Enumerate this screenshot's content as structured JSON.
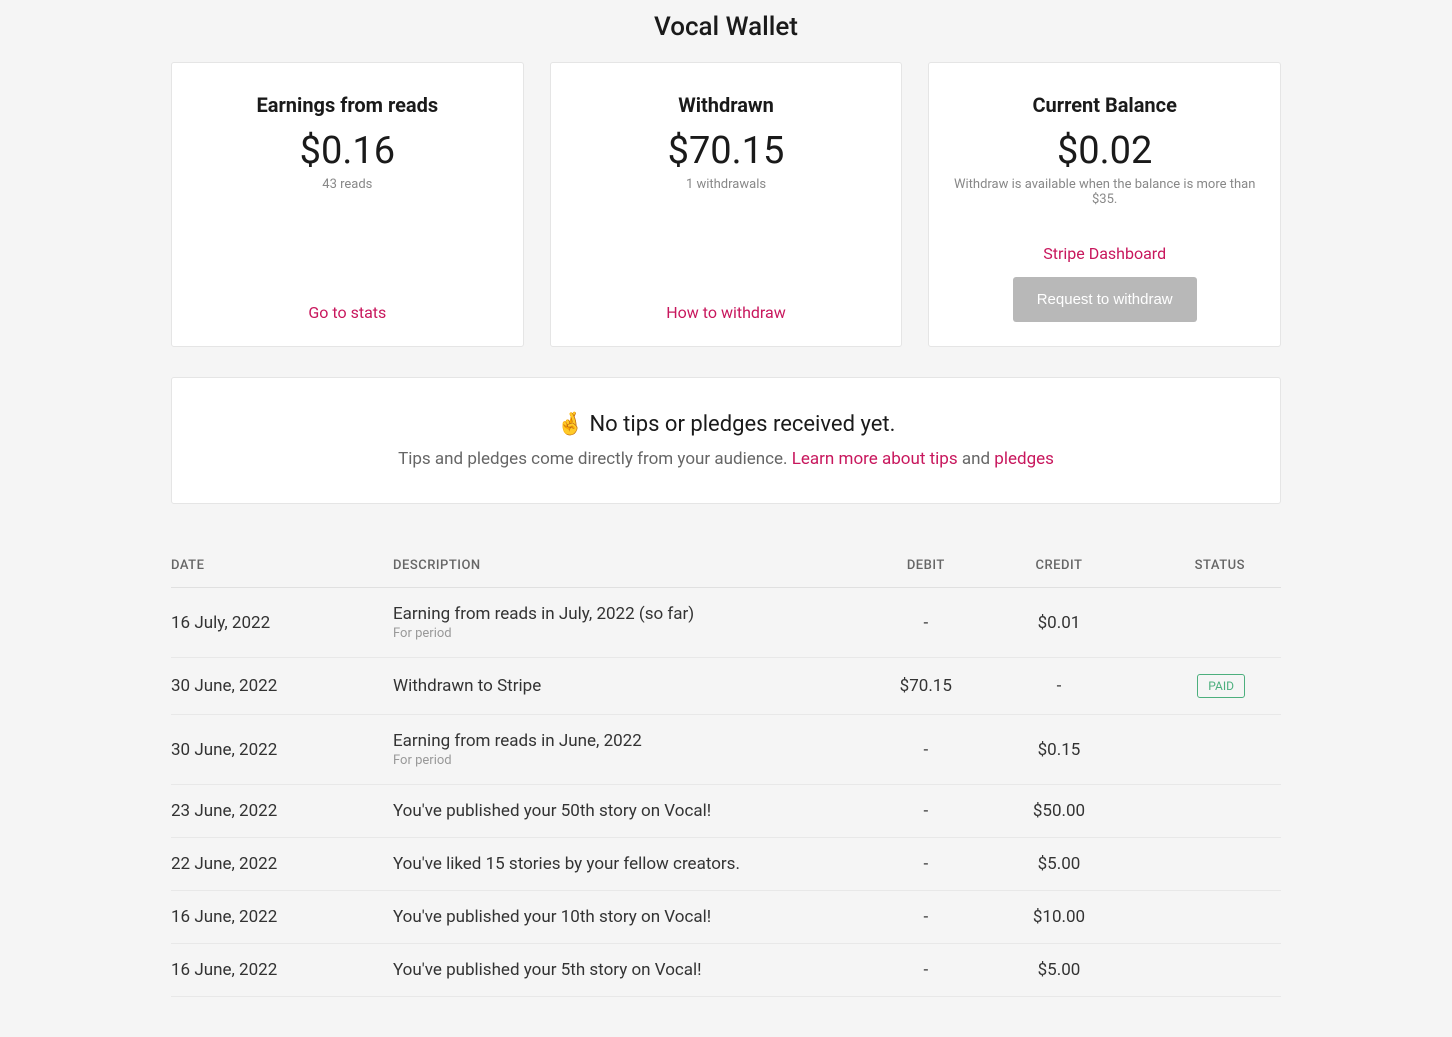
{
  "page_title": "Vocal Wallet",
  "cards": {
    "earnings": {
      "title": "Earnings from reads",
      "value": "$0.16",
      "sub": "43 reads",
      "link": "Go to stats"
    },
    "withdrawn": {
      "title": "Withdrawn",
      "value": "$70.15",
      "sub": "1 withdrawals",
      "link": "How to withdraw"
    },
    "balance": {
      "title": "Current Balance",
      "value": "$0.02",
      "sub": "Withdraw is available when the balance is more than $35.",
      "stripe_link": "Stripe Dashboard",
      "button": "Request to withdraw"
    }
  },
  "tips": {
    "emoji": "🤞",
    "title": "No tips or pledges received yet.",
    "sub_prefix": "Tips and pledges come directly from your audience. ",
    "link1": "Learn more about tips",
    "middle": " and ",
    "link2": "pledges"
  },
  "table": {
    "headers": {
      "date": "DATE",
      "desc": "DESCRIPTION",
      "debit": "DEBIT",
      "credit": "CREDIT",
      "status": "STATUS"
    },
    "rows": [
      {
        "date": "16 July, 2022",
        "desc": "Earning from reads in July, 2022 (so far)",
        "sub": "For period",
        "debit": "-",
        "credit": "$0.01",
        "status": ""
      },
      {
        "date": "30 June, 2022",
        "desc": "Withdrawn to Stripe",
        "sub": "",
        "debit": "$70.15",
        "credit": "-",
        "status": "PAID"
      },
      {
        "date": "30 June, 2022",
        "desc": "Earning from reads in June, 2022",
        "sub": "For period",
        "debit": "-",
        "credit": "$0.15",
        "status": ""
      },
      {
        "date": "23 June, 2022",
        "desc": "You've published your 50th story on Vocal!",
        "sub": "",
        "debit": "-",
        "credit": "$50.00",
        "status": ""
      },
      {
        "date": "22 June, 2022",
        "desc": "You've liked 15 stories by your fellow creators.",
        "sub": "",
        "debit": "-",
        "credit": "$5.00",
        "status": ""
      },
      {
        "date": "16 June, 2022",
        "desc": "You've published your 10th story on Vocal!",
        "sub": "",
        "debit": "-",
        "credit": "$10.00",
        "status": ""
      },
      {
        "date": "16 June, 2022",
        "desc": "You've published your 5th story on Vocal!",
        "sub": "",
        "debit": "-",
        "credit": "$5.00",
        "status": ""
      }
    ]
  }
}
